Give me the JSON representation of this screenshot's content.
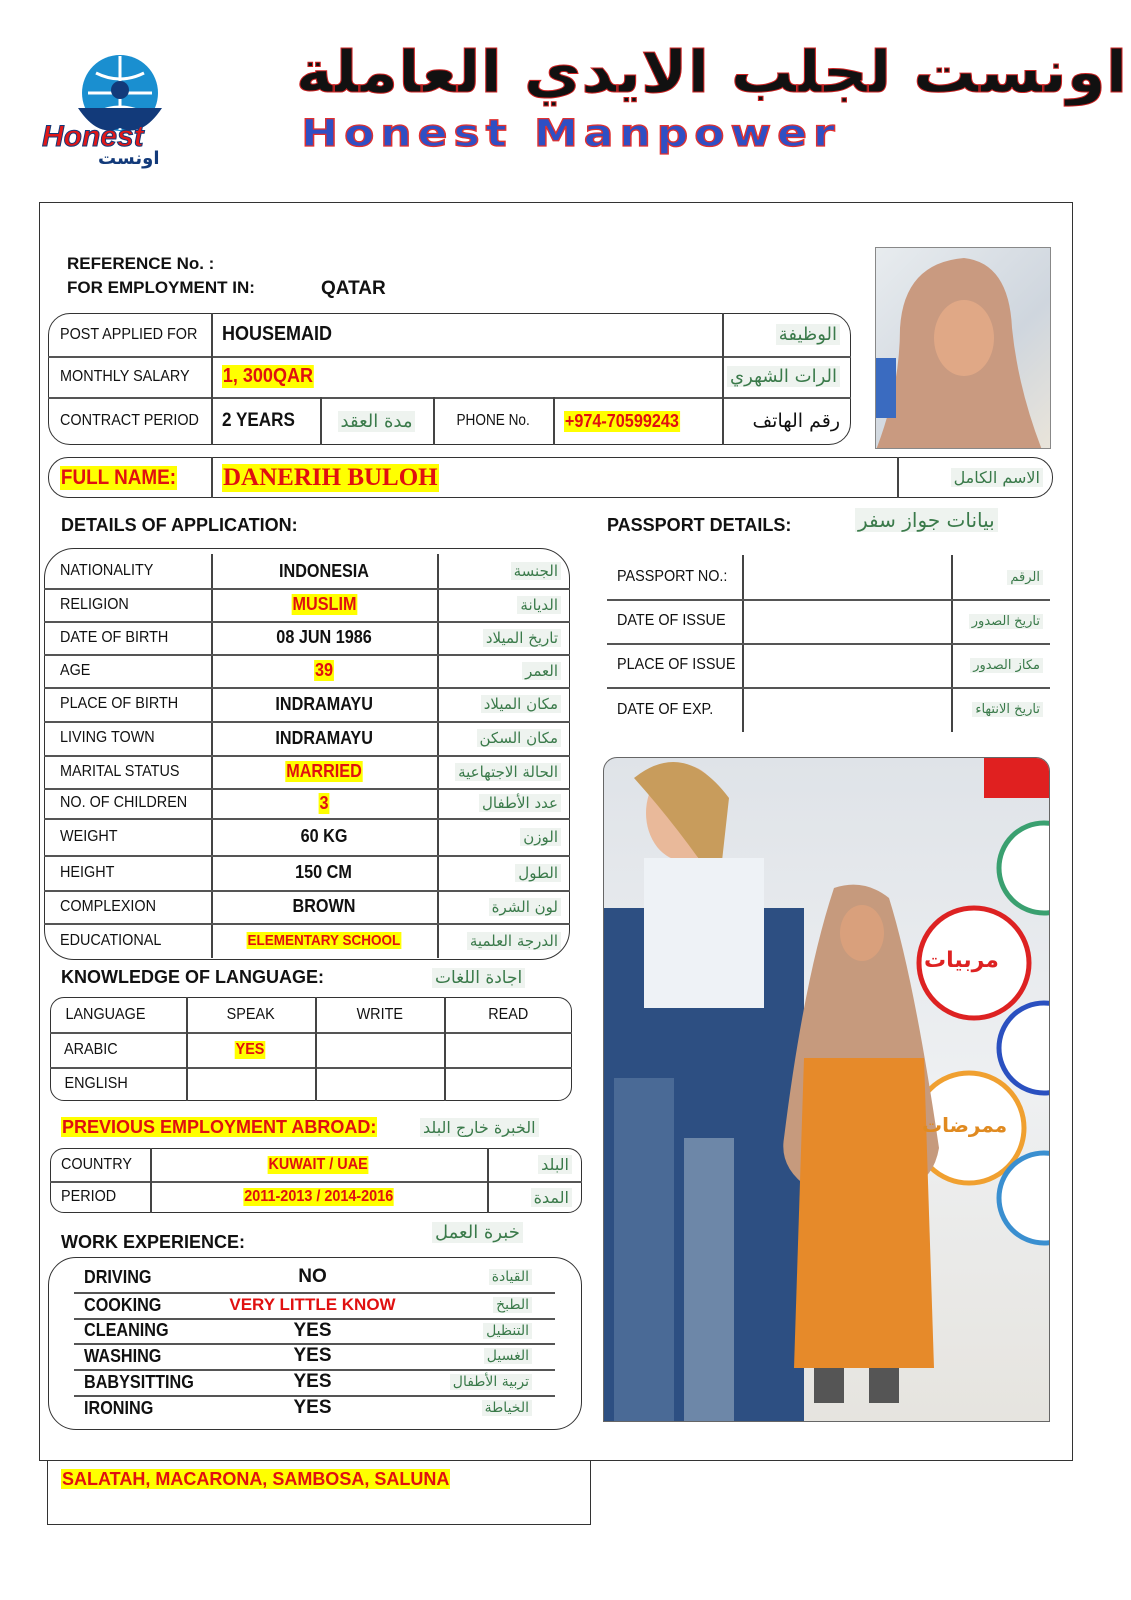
{
  "header": {
    "logo_text": "Honest",
    "logo_arabic": "اونست",
    "title_arabic": "اونست لجلب الايدي العاملة",
    "title_english": "Honest Manpower"
  },
  "ref": {
    "reference_label": "REFERENCE No. :",
    "reference_value": "",
    "employment_label": "FOR EMPLOYMENT IN:",
    "employment_value": "QATAR"
  },
  "top": {
    "post_label": "POST APPLIED FOR",
    "post_value": "HOUSEMAID",
    "post_ar": "الوظيفة",
    "salary_label": "MONTHLY SALARY",
    "salary_value": "1, 300QAR",
    "salary_ar": "الرات الشهري",
    "contract_label": "CONTRACT PERIOD",
    "contract_value": "2 YEARS",
    "contract_ar": "مدة العقد",
    "phone_label": "PHONE No.",
    "phone_value": "+974-70599243",
    "phone_ar": "رقم الهاتف"
  },
  "fullname": {
    "label": "FULL NAME:",
    "value": "DANERIH BULOH",
    "ar": "الاسم الكامل"
  },
  "details": {
    "title": "DETAILS OF APPLICATION:",
    "rows": [
      {
        "label": "NATIONALITY",
        "value": "INDONESIA",
        "ar": "الجنسة",
        "highlight": false
      },
      {
        "label": "RELIGION",
        "value": "MUSLIM",
        "ar": "الديانة",
        "highlight": true
      },
      {
        "label": "DATE OF BIRTH",
        "value": "08 JUN 1986",
        "ar": "تاريخ الميلاد",
        "highlight": false
      },
      {
        "label": "AGE",
        "value": "39",
        "ar": "العمر",
        "highlight": true
      },
      {
        "label": "PLACE OF BIRTH",
        "value": "INDRAMAYU",
        "ar": "مكان الميلاد",
        "highlight": false
      },
      {
        "label": "LIVING TOWN",
        "value": "INDRAMAYU",
        "ar": "مكان السكن",
        "highlight": false
      },
      {
        "label": "MARITAL STATUS",
        "value": "MARRIED",
        "ar": "الحالة الاجتهاعية",
        "highlight": true
      },
      {
        "label": "NO. OF CHILDREN",
        "value": "3",
        "ar": "عدد الأطفال",
        "highlight": true
      },
      {
        "label": "WEIGHT",
        "value": "60 KG",
        "ar": "الوزن",
        "highlight": false
      },
      {
        "label": "HEIGHT",
        "value": "150 CM",
        "ar": "الطول",
        "highlight": false
      },
      {
        "label": "COMPLEXION",
        "value": "BROWN",
        "ar": "لون الشرة",
        "highlight": false
      },
      {
        "label": "EDUCATIONAL",
        "value": "ELEMENTARY SCHOOL",
        "ar": "الدرجة العلمية",
        "highlight": true
      }
    ]
  },
  "passport": {
    "title": "PASSPORT DETAILS:",
    "title_ar": "بيانات جواز سفر",
    "rows": [
      {
        "label": "PASSPORT NO.:",
        "value": "",
        "ar": "الرقم"
      },
      {
        "label": "DATE OF ISSUE",
        "value": "",
        "ar": "تاريخ الصدور"
      },
      {
        "label": "PLACE OF ISSUE",
        "value": "",
        "ar": "مكاز الصدور"
      },
      {
        "label": "DATE OF EXP.",
        "value": "",
        "ar": "تاريخ الانتهاء"
      }
    ]
  },
  "language": {
    "title": "KNOWLEDGE OF LANGUAGE:",
    "title_ar": "اجادة اللغات",
    "headers": [
      "LANGUAGE",
      "SPEAK",
      "WRITE",
      "READ"
    ],
    "rows": [
      [
        "ARABIC",
        "YES",
        "",
        ""
      ],
      [
        "ENGLISH",
        "",
        "",
        ""
      ]
    ]
  },
  "previous": {
    "title": "PREVIOUS EMPLOYMENT ABROAD:",
    "title_ar": "الخبرة خارج البلد",
    "country_label": "COUNTRY",
    "country_value": "KUWAIT / UAE",
    "country_ar": "البلد",
    "period_label": "PERIOD",
    "period_value": "2011-2013 / 2014-2016",
    "period_ar": "المدة"
  },
  "work": {
    "title": "WORK EXPERIENCE:",
    "title_ar": "خبرة العمل",
    "rows": [
      {
        "label": "DRIVING",
        "value": "NO",
        "ar": "القيادة",
        "red": false
      },
      {
        "label": "COOKING",
        "value": "VERY LITTLE KNOW",
        "ar": "الطبخ",
        "red": true
      },
      {
        "label": "CLEANING",
        "value": "YES",
        "ar": "التنظيل",
        "red": false
      },
      {
        "label": "WASHING",
        "value": "YES",
        "ar": "الغسيل",
        "red": false
      },
      {
        "label": "BABYSITTING",
        "value": "YES",
        "ar": "تربية الأطفال",
        "red": false
      },
      {
        "label": "IRONING",
        "value": "YES",
        "ar": "الخياطة",
        "red": false
      }
    ]
  },
  "notes": {
    "text": "SALATAH, MACARONA, SAMBOSA, SALUNA"
  },
  "photo2": {
    "poster_ar_1": "مربيات",
    "poster_ar_2": "ممرضات"
  },
  "colors": {
    "highlight": "#ffff00",
    "red": "#e01010",
    "arabic_green": "#3a7a4a",
    "brand_blue": "#2f4fc4"
  }
}
